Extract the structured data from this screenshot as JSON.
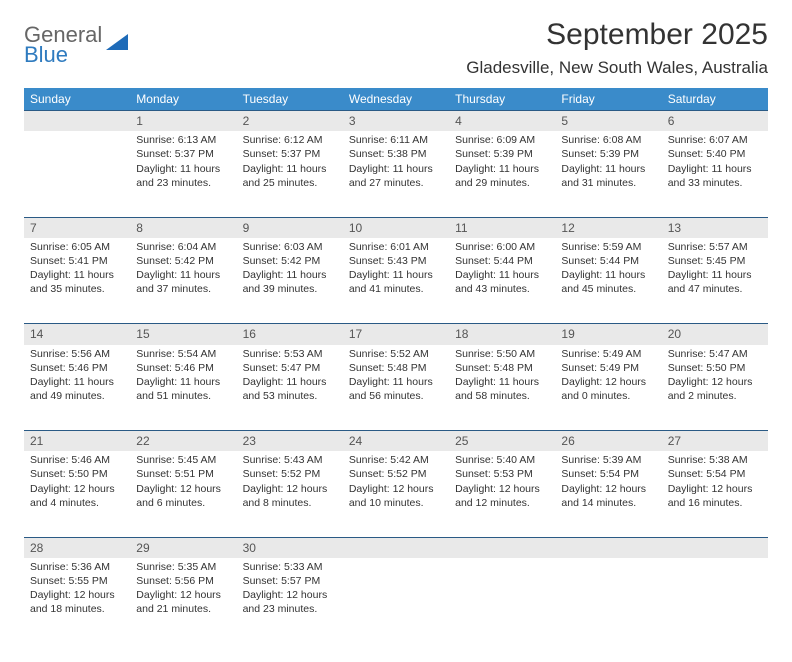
{
  "brand": {
    "line1": "General",
    "line2": "Blue",
    "logo_color": "#1e6bb8"
  },
  "title": "September 2025",
  "location": "Gladesville, New South Wales, Australia",
  "colors": {
    "header_bg": "#3a8bca",
    "daynum_bg": "#e9e9e9",
    "rule": "#2a5a85"
  },
  "weekdays": [
    "Sunday",
    "Monday",
    "Tuesday",
    "Wednesday",
    "Thursday",
    "Friday",
    "Saturday"
  ],
  "weeks": [
    [
      null,
      {
        "n": "1",
        "sr": "Sunrise: 6:13 AM",
        "ss": "Sunset: 5:37 PM",
        "d1": "Daylight: 11 hours",
        "d2": "and 23 minutes."
      },
      {
        "n": "2",
        "sr": "Sunrise: 6:12 AM",
        "ss": "Sunset: 5:37 PM",
        "d1": "Daylight: 11 hours",
        "d2": "and 25 minutes."
      },
      {
        "n": "3",
        "sr": "Sunrise: 6:11 AM",
        "ss": "Sunset: 5:38 PM",
        "d1": "Daylight: 11 hours",
        "d2": "and 27 minutes."
      },
      {
        "n": "4",
        "sr": "Sunrise: 6:09 AM",
        "ss": "Sunset: 5:39 PM",
        "d1": "Daylight: 11 hours",
        "d2": "and 29 minutes."
      },
      {
        "n": "5",
        "sr": "Sunrise: 6:08 AM",
        "ss": "Sunset: 5:39 PM",
        "d1": "Daylight: 11 hours",
        "d2": "and 31 minutes."
      },
      {
        "n": "6",
        "sr": "Sunrise: 6:07 AM",
        "ss": "Sunset: 5:40 PM",
        "d1": "Daylight: 11 hours",
        "d2": "and 33 minutes."
      }
    ],
    [
      {
        "n": "7",
        "sr": "Sunrise: 6:05 AM",
        "ss": "Sunset: 5:41 PM",
        "d1": "Daylight: 11 hours",
        "d2": "and 35 minutes."
      },
      {
        "n": "8",
        "sr": "Sunrise: 6:04 AM",
        "ss": "Sunset: 5:42 PM",
        "d1": "Daylight: 11 hours",
        "d2": "and 37 minutes."
      },
      {
        "n": "9",
        "sr": "Sunrise: 6:03 AM",
        "ss": "Sunset: 5:42 PM",
        "d1": "Daylight: 11 hours",
        "d2": "and 39 minutes."
      },
      {
        "n": "10",
        "sr": "Sunrise: 6:01 AM",
        "ss": "Sunset: 5:43 PM",
        "d1": "Daylight: 11 hours",
        "d2": "and 41 minutes."
      },
      {
        "n": "11",
        "sr": "Sunrise: 6:00 AM",
        "ss": "Sunset: 5:44 PM",
        "d1": "Daylight: 11 hours",
        "d2": "and 43 minutes."
      },
      {
        "n": "12",
        "sr": "Sunrise: 5:59 AM",
        "ss": "Sunset: 5:44 PM",
        "d1": "Daylight: 11 hours",
        "d2": "and 45 minutes."
      },
      {
        "n": "13",
        "sr": "Sunrise: 5:57 AM",
        "ss": "Sunset: 5:45 PM",
        "d1": "Daylight: 11 hours",
        "d2": "and 47 minutes."
      }
    ],
    [
      {
        "n": "14",
        "sr": "Sunrise: 5:56 AM",
        "ss": "Sunset: 5:46 PM",
        "d1": "Daylight: 11 hours",
        "d2": "and 49 minutes."
      },
      {
        "n": "15",
        "sr": "Sunrise: 5:54 AM",
        "ss": "Sunset: 5:46 PM",
        "d1": "Daylight: 11 hours",
        "d2": "and 51 minutes."
      },
      {
        "n": "16",
        "sr": "Sunrise: 5:53 AM",
        "ss": "Sunset: 5:47 PM",
        "d1": "Daylight: 11 hours",
        "d2": "and 53 minutes."
      },
      {
        "n": "17",
        "sr": "Sunrise: 5:52 AM",
        "ss": "Sunset: 5:48 PM",
        "d1": "Daylight: 11 hours",
        "d2": "and 56 minutes."
      },
      {
        "n": "18",
        "sr": "Sunrise: 5:50 AM",
        "ss": "Sunset: 5:48 PM",
        "d1": "Daylight: 11 hours",
        "d2": "and 58 minutes."
      },
      {
        "n": "19",
        "sr": "Sunrise: 5:49 AM",
        "ss": "Sunset: 5:49 PM",
        "d1": "Daylight: 12 hours",
        "d2": "and 0 minutes."
      },
      {
        "n": "20",
        "sr": "Sunrise: 5:47 AM",
        "ss": "Sunset: 5:50 PM",
        "d1": "Daylight: 12 hours",
        "d2": "and 2 minutes."
      }
    ],
    [
      {
        "n": "21",
        "sr": "Sunrise: 5:46 AM",
        "ss": "Sunset: 5:50 PM",
        "d1": "Daylight: 12 hours",
        "d2": "and 4 minutes."
      },
      {
        "n": "22",
        "sr": "Sunrise: 5:45 AM",
        "ss": "Sunset: 5:51 PM",
        "d1": "Daylight: 12 hours",
        "d2": "and 6 minutes."
      },
      {
        "n": "23",
        "sr": "Sunrise: 5:43 AM",
        "ss": "Sunset: 5:52 PM",
        "d1": "Daylight: 12 hours",
        "d2": "and 8 minutes."
      },
      {
        "n": "24",
        "sr": "Sunrise: 5:42 AM",
        "ss": "Sunset: 5:52 PM",
        "d1": "Daylight: 12 hours",
        "d2": "and 10 minutes."
      },
      {
        "n": "25",
        "sr": "Sunrise: 5:40 AM",
        "ss": "Sunset: 5:53 PM",
        "d1": "Daylight: 12 hours",
        "d2": "and 12 minutes."
      },
      {
        "n": "26",
        "sr": "Sunrise: 5:39 AM",
        "ss": "Sunset: 5:54 PM",
        "d1": "Daylight: 12 hours",
        "d2": "and 14 minutes."
      },
      {
        "n": "27",
        "sr": "Sunrise: 5:38 AM",
        "ss": "Sunset: 5:54 PM",
        "d1": "Daylight: 12 hours",
        "d2": "and 16 minutes."
      }
    ],
    [
      {
        "n": "28",
        "sr": "Sunrise: 5:36 AM",
        "ss": "Sunset: 5:55 PM",
        "d1": "Daylight: 12 hours",
        "d2": "and 18 minutes."
      },
      {
        "n": "29",
        "sr": "Sunrise: 5:35 AM",
        "ss": "Sunset: 5:56 PM",
        "d1": "Daylight: 12 hours",
        "d2": "and 21 minutes."
      },
      {
        "n": "30",
        "sr": "Sunrise: 5:33 AM",
        "ss": "Sunset: 5:57 PM",
        "d1": "Daylight: 12 hours",
        "d2": "and 23 minutes."
      },
      null,
      null,
      null,
      null
    ]
  ]
}
